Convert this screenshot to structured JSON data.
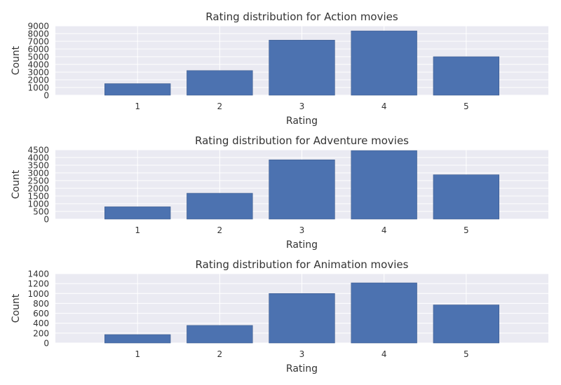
{
  "chart_data": [
    {
      "type": "bar",
      "title": "Rating distribution for Action movies",
      "xlabel": "Rating",
      "ylabel": "Count",
      "categories": [
        "1",
        "2",
        "3",
        "4",
        "5"
      ],
      "values": [
        1500,
        3200,
        7150,
        8350,
        5000
      ],
      "ylim": [
        0,
        9000
      ],
      "yticks": [
        0,
        1000,
        2000,
        3000,
        4000,
        5000,
        6000,
        7000,
        8000,
        9000
      ],
      "grid": true
    },
    {
      "type": "bar",
      "title": "Rating distribution for Adventure movies",
      "xlabel": "Rating",
      "ylabel": "Count",
      "categories": [
        "1",
        "2",
        "3",
        "4",
        "5"
      ],
      "values": [
        800,
        1680,
        3850,
        4450,
        2880
      ],
      "ylim": [
        0,
        4500
      ],
      "yticks": [
        0,
        500,
        1000,
        1500,
        2000,
        2500,
        3000,
        3500,
        4000,
        4500
      ],
      "grid": true
    },
    {
      "type": "bar",
      "title": "Rating distribution for Animation movies",
      "xlabel": "Rating",
      "ylabel": "Count",
      "categories": [
        "1",
        "2",
        "3",
        "4",
        "5"
      ],
      "values": [
        170,
        355,
        1000,
        1215,
        770
      ],
      "ylim": [
        0,
        1400
      ],
      "yticks": [
        0,
        200,
        400,
        600,
        800,
        1000,
        1200,
        1400
      ],
      "grid": true
    }
  ],
  "colors": {
    "bar": "#4c72b0",
    "plot_background": "#eaeaf2",
    "grid": "#ffffff",
    "text": "#333333"
  }
}
